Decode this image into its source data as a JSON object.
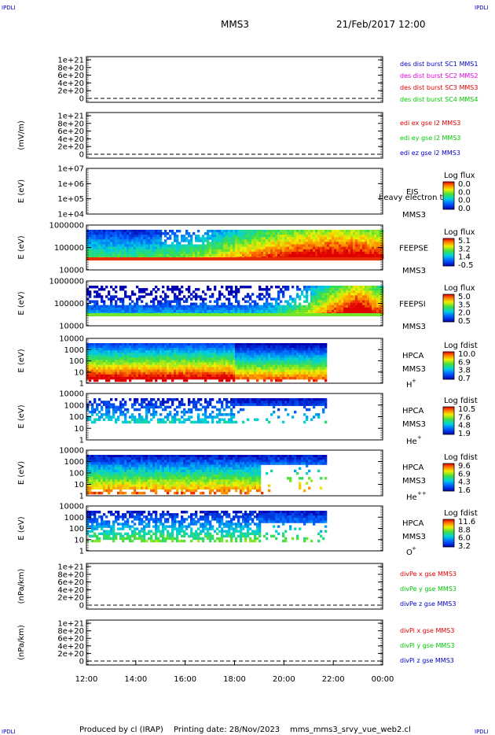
{
  "header": {
    "corner_tl": "IPDLI",
    "corner_tr": "IPDLI",
    "corner_bl": "IPDLI",
    "corner_br": "IPDLI",
    "spacecraft": "MMS3",
    "datetime": "21/Feb/2017 12:00"
  },
  "footer": {
    "produced_by": "Produced by cl (IRAP)",
    "printing_date": "Printing date: 28/Nov/2023",
    "filename": "mms_mms3_srvy_vue_web2.cl"
  },
  "colors": {
    "red": "#e00000",
    "magenta": "#e000e0",
    "green": "#00c800",
    "blue": "#0000c8",
    "black": "#000000"
  },
  "chart_data": {
    "type": "heatmap",
    "x_tick_labels": [
      "12:00",
      "14:00",
      "16:00",
      "18:00",
      "20:00",
      "22:00",
      "00:00"
    ],
    "x_range_hours": [
      12,
      24
    ],
    "panels": [
      {
        "kind": "line",
        "ylabel": "",
        "ytick_labels": [
          "1e+21",
          "8e+20",
          "6e+20",
          "4e+20",
          "2e+20",
          "0"
        ],
        "ylim": [
          0,
          1e+21
        ],
        "legend": [
          {
            "text": "des dist burst SC1 MMS1",
            "color": "blue"
          },
          {
            "text": "des dist burst SC2 MMS2",
            "color": "magenta"
          },
          {
            "text": "des dist burst SC3 MMS3",
            "color": "red"
          },
          {
            "text": "des dist burst SC4 MMS4",
            "color": "green"
          }
        ]
      },
      {
        "kind": "line",
        "ylabel": "(mV/m)",
        "ytick_labels": [
          "1e+21",
          "8e+20",
          "6e+20",
          "4e+20",
          "2e+20",
          "0"
        ],
        "ylim": [
          0,
          1e+21
        ],
        "legend": [
          {
            "text": "edi ex gse l2 MMS3",
            "color": "red"
          },
          {
            "text": "edi ey gse l2 MMS3",
            "color": "green"
          },
          {
            "text": "edi ez gse l2 MMS3",
            "color": "blue"
          }
        ]
      },
      {
        "kind": "spectrogram",
        "ylabel": "E (eV)",
        "ytick_labels": [
          "1e+07",
          "1e+06",
          "1e+05",
          "1e+04"
        ],
        "log_y": true,
        "instrument": "EIS",
        "spacecraft": "MMS3",
        "overlay": "heavy electron to",
        "cbar_title": "Log flux",
        "cbar_ticks": [
          "0.0",
          "0.0",
          "0.0",
          "0.0"
        ],
        "data_hours": [],
        "data_desc": "no data"
      },
      {
        "kind": "spectrogram",
        "ylabel": "E (eV)",
        "ytick_labels": [
          "1000000",
          "100000",
          "10000"
        ],
        "log_y": true,
        "instrument": "FEEPSE",
        "spacecraft": "MMS3",
        "cbar_title": "Log flux",
        "cbar_ticks": [
          "5.1",
          "3.2",
          "1.4",
          "-0.5"
        ],
        "data_hours": [
          12.0,
          24.0
        ],
        "flux_profile": {
          "x_hours": [
            12,
            14,
            16,
            17,
            18,
            19,
            20,
            21,
            22,
            23,
            24
          ],
          "level": [
            0.35,
            0.32,
            0.4,
            0.5,
            0.62,
            0.72,
            0.8,
            0.86,
            0.9,
            0.88,
            0.8
          ]
        }
      },
      {
        "kind": "spectrogram",
        "ylabel": "E (eV)",
        "ytick_labels": [
          "1000000",
          "100000",
          "10000"
        ],
        "log_y": true,
        "instrument": "FEEPSI",
        "spacecraft": "MMS3",
        "cbar_title": "Log flux",
        "cbar_ticks": [
          "5.0",
          "3.5",
          "2.0",
          "0.5"
        ],
        "data_hours": [
          12.0,
          24.0
        ],
        "flux_profile": {
          "x_hours": [
            12,
            16,
            19,
            20,
            21,
            22,
            23,
            24
          ],
          "level": [
            0.1,
            0.1,
            0.15,
            0.3,
            0.5,
            0.75,
            0.95,
            0.7
          ]
        }
      },
      {
        "kind": "spectrogram",
        "ylabel": "E (eV)",
        "ytick_labels": [
          "10000",
          "1000",
          "100",
          "10",
          "1"
        ],
        "log_y": true,
        "instrument": "HPCA",
        "spacecraft": "MMS3",
        "species": "H",
        "species_charge": "+",
        "cbar_title": "Log fdist",
        "cbar_ticks": [
          "10.0",
          "6.9",
          "3.8",
          "0.7"
        ],
        "data_hours": [
          12.0,
          21.7
        ]
      },
      {
        "kind": "spectrogram",
        "ylabel": "E (eV)",
        "ytick_labels": [
          "10000",
          "1000",
          "100",
          "10",
          "1"
        ],
        "log_y": true,
        "instrument": "HPCA",
        "spacecraft": "MMS3",
        "species": "He",
        "species_charge": "+",
        "cbar_title": "Log fdist",
        "cbar_ticks": [
          "10.5",
          "7.6",
          "4.8",
          "1.9"
        ],
        "data_hours": [
          12.0,
          21.7
        ]
      },
      {
        "kind": "spectrogram",
        "ylabel": "E (eV)",
        "ytick_labels": [
          "10000",
          "1000",
          "100",
          "10",
          "1"
        ],
        "log_y": true,
        "instrument": "HPCA",
        "spacecraft": "MMS3",
        "species": "He",
        "species_charge": "++",
        "cbar_title": "Log fdist",
        "cbar_ticks": [
          "9.6",
          "6.9",
          "4.3",
          "1.6"
        ],
        "data_hours": [
          12.0,
          21.7
        ]
      },
      {
        "kind": "spectrogram",
        "ylabel": "E (eV)",
        "ytick_labels": [
          "10000",
          "1000",
          "100",
          "10",
          "1"
        ],
        "log_y": true,
        "instrument": "HPCA",
        "spacecraft": "MMS3",
        "species": "O",
        "species_charge": "+",
        "cbar_title": "Log fdist",
        "cbar_ticks": [
          "11.6",
          "8.8",
          "6.0",
          "3.2"
        ],
        "data_hours": [
          12.0,
          21.7
        ]
      },
      {
        "kind": "line",
        "ylabel": "(nPa/km)",
        "ytick_labels": [
          "1e+21",
          "8e+20",
          "6e+20",
          "4e+20",
          "2e+20",
          "0"
        ],
        "ylim": [
          0,
          1e+21
        ],
        "legend": [
          {
            "text": "divPe x gse MMS3",
            "color": "red"
          },
          {
            "text": "divPe y gse MMS3",
            "color": "green"
          },
          {
            "text": "divPe z gse MMS3",
            "color": "blue"
          }
        ]
      },
      {
        "kind": "line",
        "ylabel": "(nPa/km)",
        "ytick_labels": [
          "1e+21",
          "8e+20",
          "6e+20",
          "4e+20",
          "2e+20",
          "0"
        ],
        "ylim": [
          0,
          1e+21
        ],
        "legend": [
          {
            "text": "divPi x gse MMS3",
            "color": "red"
          },
          {
            "text": "divPi y gse MMS3",
            "color": "green"
          },
          {
            "text": "divPi z gse MMS3",
            "color": "blue"
          }
        ]
      }
    ]
  }
}
